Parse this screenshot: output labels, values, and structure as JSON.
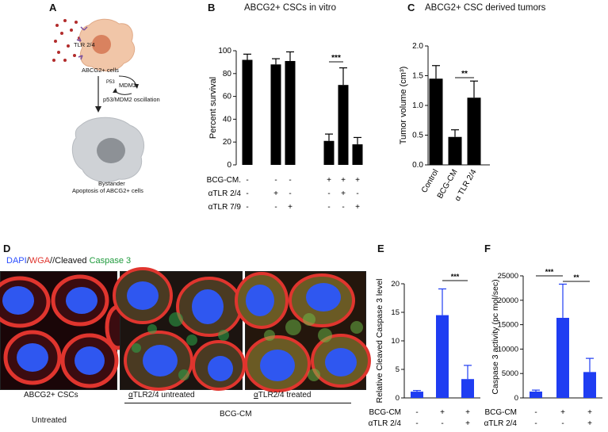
{
  "panel_labels": {
    "A": "A",
    "B": "B",
    "C": "C",
    "D": "D",
    "E": "E",
    "F": "F"
  },
  "panelA": {
    "tlr": "TLR 2/4",
    "cells": "ABCG2+ cells",
    "p53": "P53",
    "mdm2": "MDM2",
    "oscillation": "p53/MDM2 oscillation",
    "bystander": "Bystander",
    "apoptosis": "Apoptosis of ABCG2+ cells",
    "colors": {
      "cell": "#f1c6a8",
      "nucleus": "#d9825f",
      "dots": "#b22c2c",
      "gray_cell": "#cfd2d6",
      "gray_nucleus": "#8d9196"
    }
  },
  "panelD": {
    "legend": {
      "dapi": "DAPI",
      "slash1": "/",
      "wga": "WGA",
      "slash2": "/",
      "cleaved": "/Cleaved ",
      "caspase": "Caspase 3"
    },
    "caption1": "ABCG2+ CSCs",
    "caption1b": "Untreated",
    "caption2_prefix": "α",
    "caption2": "TLR2/4 untreated",
    "caption3_prefix": "α",
    "caption3": "TLR2/4 treated",
    "group": "BCG-CM",
    "colors": {
      "dapi": "#3a63ff",
      "wga": "#e0352e",
      "caspase": "#2ea84a"
    }
  },
  "chart_data": [
    {
      "id": "B",
      "type": "bar",
      "title": "ABCG2+ CSCs in vitro",
      "ylabel": "Percent survival",
      "ylim": [
        0,
        100
      ],
      "yticks": [
        0,
        20,
        40,
        60,
        80,
        100
      ],
      "values": [
        92,
        88,
        91,
        21,
        70,
        18
      ],
      "errors": [
        5,
        5,
        8,
        6,
        15,
        6
      ],
      "color": "#000000",
      "significance": [
        {
          "bars": [
            3,
            4
          ],
          "label": "***"
        }
      ],
      "conditions": [
        {
          "label": "BCG-CM.",
          "marks": [
            "-",
            "-",
            "-",
            "+",
            "+",
            "+"
          ]
        },
        {
          "label": "αTLR 2/4",
          "marks": [
            "-",
            "+",
            "-",
            "-",
            "+",
            "-"
          ]
        },
        {
          "label": "αTLR 7/9",
          "marks": [
            "-",
            "-",
            "+",
            "-",
            "-",
            "+"
          ]
        }
      ]
    },
    {
      "id": "C",
      "type": "bar",
      "title": "ABCG2+ CSC derived tumors",
      "ylabel": "Tumor volume (cm³)",
      "ylim": [
        0,
        2.0
      ],
      "yticks": [
        "0.0",
        "0.5",
        "1.0",
        "1.5",
        "2.0"
      ],
      "categories": [
        "Control",
        "BCG-CM",
        "α TLR 2/4"
      ],
      "values": [
        1.45,
        0.47,
        1.13
      ],
      "errors": [
        0.22,
        0.12,
        0.28
      ],
      "color": "#000000",
      "significance": [
        {
          "bars": [
            1,
            2
          ],
          "label": "**"
        }
      ]
    },
    {
      "id": "E",
      "type": "bar",
      "ylabel": "Relative Cleaved Caspase 3 level",
      "ylim": [
        0,
        20
      ],
      "yticks": [
        0,
        5,
        10,
        15,
        20
      ],
      "values": [
        1.1,
        14.5,
        3.3
      ],
      "errors": [
        0.2,
        4.6,
        2.4
      ],
      "color": "#1f3df2",
      "significance": [
        {
          "bars": [
            1,
            2
          ],
          "label": "***"
        }
      ],
      "conditions": [
        {
          "label": "BCG-CM",
          "marks": [
            "-",
            "+",
            "+"
          ]
        },
        {
          "label": "αTLR 2/4",
          "marks": [
            "-",
            "-",
            "+"
          ]
        }
      ]
    },
    {
      "id": "F",
      "type": "bar",
      "ylabel": "Caspase 3 activity (pc mol/sec)",
      "ylim": [
        0,
        25000
      ],
      "yticks": [
        0,
        5000,
        10000,
        15000,
        20000,
        25000
      ],
      "values": [
        1300,
        16400,
        5300
      ],
      "errors": [
        300,
        6900,
        2800
      ],
      "color": "#1f3df2",
      "significance": [
        {
          "bars": [
            0,
            1
          ],
          "label": "***"
        },
        {
          "bars": [
            1,
            2
          ],
          "label": "**"
        }
      ],
      "conditions": [
        {
          "label": "BCG-CM",
          "marks": [
            "-",
            "+",
            "+"
          ]
        },
        {
          "label": "αTLR 2/4",
          "marks": [
            "-",
            "-",
            "+"
          ]
        }
      ]
    }
  ]
}
